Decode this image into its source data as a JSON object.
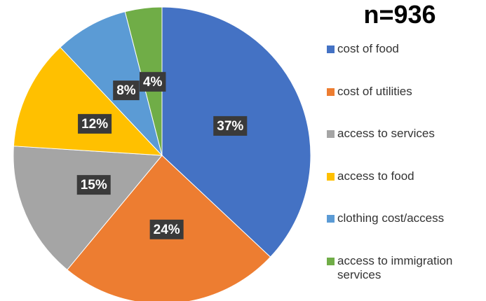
{
  "chart_data": {
    "type": "pie",
    "title": "n=936",
    "categories": [
      "cost of food",
      "cost of utilities",
      "access to services",
      "access to food",
      "clothing cost/access",
      "access to immigration services"
    ],
    "values": [
      37,
      24,
      15,
      12,
      8,
      4
    ],
    "value_labels": [
      "37%",
      "24%",
      "15%",
      "12%",
      "8%",
      "4%"
    ],
    "colors": [
      "#4472c4",
      "#ed7d31",
      "#a5a5a5",
      "#ffc000",
      "#5b9bd5",
      "#70ad47"
    ],
    "legend": "right"
  }
}
